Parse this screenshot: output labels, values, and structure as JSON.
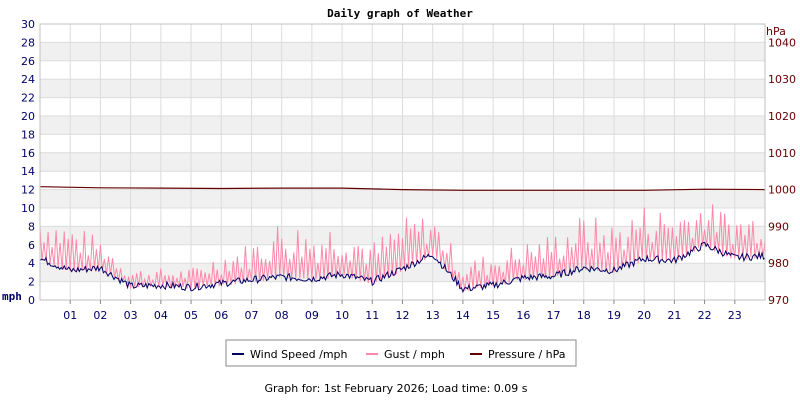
{
  "chart_data": {
    "type": "line",
    "title": "Daily graph of Weather",
    "x_ticks": [
      "01",
      "02",
      "03",
      "04",
      "05",
      "06",
      "07",
      "08",
      "09",
      "10",
      "11",
      "12",
      "13",
      "14",
      "15",
      "16",
      "17",
      "18",
      "19",
      "20",
      "21",
      "22",
      "23"
    ],
    "left_axis": {
      "unit": "mph",
      "range": [
        0,
        30
      ],
      "ticks": [
        "0",
        "2",
        "4",
        "6",
        "8",
        "10",
        "12",
        "14",
        "16",
        "18",
        "20",
        "22",
        "24",
        "26",
        "28",
        "30"
      ]
    },
    "right_axis": {
      "unit": "hPa",
      "range": [
        970,
        1045
      ],
      "ticks": [
        "970",
        "980",
        "990",
        "1000",
        "1010",
        "1020",
        "1030",
        "1040"
      ]
    },
    "grid": true,
    "legend_position": "bottom",
    "series": [
      {
        "name": "Wind Speed /mph",
        "color": "#000066",
        "axis": "left",
        "hours": [
          0,
          1,
          2,
          3,
          4,
          5,
          6,
          7,
          8,
          9,
          10,
          11,
          12,
          13,
          14,
          15,
          16,
          17,
          18,
          19,
          20,
          21,
          22,
          23,
          24
        ],
        "values": [
          4.5,
          3.2,
          3.5,
          1.5,
          1.6,
          1.4,
          1.8,
          2.2,
          2.5,
          2.3,
          2.8,
          2.0,
          3.4,
          5.0,
          1.2,
          1.6,
          2.4,
          2.6,
          3.5,
          3.2,
          4.5,
          4.3,
          6.0,
          4.6,
          4.8
        ]
      },
      {
        "name": "Gust / mph",
        "color": "#ff88aa",
        "axis": "left",
        "hours": [
          0,
          1,
          2,
          3,
          4,
          5,
          6,
          7,
          8,
          9,
          10,
          11,
          12,
          13,
          14,
          15,
          16,
          17,
          18,
          19,
          20,
          21,
          22,
          23,
          24
        ],
        "values": [
          9.5,
          8.0,
          6.5,
          3.3,
          3.3,
          3.3,
          5.0,
          6.0,
          8.5,
          7.5,
          8.5,
          6.0,
          8.5,
          9.0,
          4.0,
          5.0,
          6.0,
          7.0,
          9.0,
          8.0,
          10.0,
          9.5,
          10.5,
          9.0,
          9.5
        ]
      },
      {
        "name": "Pressure / hPa",
        "color": "#660000",
        "axis": "right",
        "hours": [
          0,
          2,
          4,
          6,
          8,
          10,
          12,
          14,
          16,
          18,
          20,
          22,
          24
        ],
        "values": [
          1000.8,
          1000.5,
          1000.4,
          1000.3,
          1000.4,
          1000.4,
          1000.0,
          999.8,
          999.8,
          999.8,
          999.8,
          1000.1,
          1000.0
        ]
      }
    ]
  },
  "footer": {
    "text": "Graph for: 1st February 2026; Load time: 0.09 s"
  }
}
